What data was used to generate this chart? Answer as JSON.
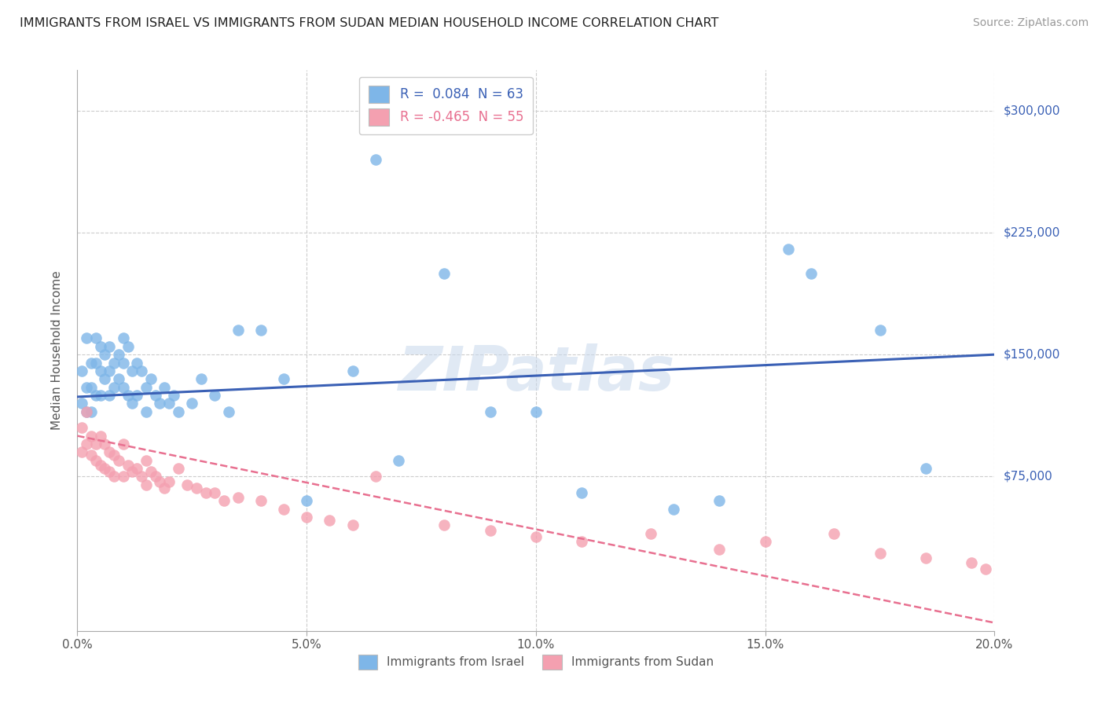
{
  "title": "IMMIGRANTS FROM ISRAEL VS IMMIGRANTS FROM SUDAN MEDIAN HOUSEHOLD INCOME CORRELATION CHART",
  "source": "Source: ZipAtlas.com",
  "ylabel": "Median Household Income",
  "xlim": [
    0.0,
    0.2
  ],
  "ylim": [
    -20000,
    325000
  ],
  "yticks": [
    0,
    75000,
    150000,
    225000,
    300000
  ],
  "xticks": [
    0.0,
    0.05,
    0.1,
    0.15,
    0.2
  ],
  "xtick_labels": [
    "0.0%",
    "5.0%",
    "10.0%",
    "15.0%",
    "20.0%"
  ],
  "israel_R": 0.084,
  "israel_N": 63,
  "sudan_R": -0.465,
  "sudan_N": 55,
  "israel_color": "#7EB6E8",
  "sudan_color": "#F4A0B0",
  "israel_line_color": "#3A60B5",
  "sudan_line_color": "#E87090",
  "background_color": "#FFFFFF",
  "grid_color": "#CCCCCC",
  "watermark": "ZIPatlas",
  "israel_scatter_x": [
    0.001,
    0.001,
    0.002,
    0.002,
    0.002,
    0.003,
    0.003,
    0.003,
    0.004,
    0.004,
    0.004,
    0.005,
    0.005,
    0.005,
    0.006,
    0.006,
    0.007,
    0.007,
    0.007,
    0.008,
    0.008,
    0.009,
    0.009,
    0.01,
    0.01,
    0.01,
    0.011,
    0.011,
    0.012,
    0.012,
    0.013,
    0.013,
    0.014,
    0.015,
    0.015,
    0.016,
    0.017,
    0.018,
    0.019,
    0.02,
    0.021,
    0.022,
    0.025,
    0.027,
    0.03,
    0.033,
    0.035,
    0.04,
    0.045,
    0.05,
    0.06,
    0.065,
    0.07,
    0.08,
    0.09,
    0.1,
    0.11,
    0.13,
    0.14,
    0.155,
    0.16,
    0.175,
    0.185
  ],
  "israel_scatter_y": [
    140000,
    120000,
    160000,
    130000,
    115000,
    145000,
    130000,
    115000,
    160000,
    145000,
    125000,
    155000,
    140000,
    125000,
    150000,
    135000,
    155000,
    140000,
    125000,
    145000,
    130000,
    150000,
    135000,
    160000,
    145000,
    130000,
    155000,
    125000,
    140000,
    120000,
    145000,
    125000,
    140000,
    130000,
    115000,
    135000,
    125000,
    120000,
    130000,
    120000,
    125000,
    115000,
    120000,
    135000,
    125000,
    115000,
    165000,
    165000,
    135000,
    60000,
    140000,
    270000,
    85000,
    200000,
    115000,
    115000,
    65000,
    55000,
    60000,
    215000,
    200000,
    165000,
    80000
  ],
  "sudan_scatter_x": [
    0.001,
    0.001,
    0.002,
    0.002,
    0.003,
    0.003,
    0.004,
    0.004,
    0.005,
    0.005,
    0.006,
    0.006,
    0.007,
    0.007,
    0.008,
    0.008,
    0.009,
    0.01,
    0.01,
    0.011,
    0.012,
    0.013,
    0.014,
    0.015,
    0.015,
    0.016,
    0.017,
    0.018,
    0.019,
    0.02,
    0.022,
    0.024,
    0.026,
    0.028,
    0.03,
    0.032,
    0.035,
    0.04,
    0.045,
    0.05,
    0.055,
    0.06,
    0.065,
    0.08,
    0.09,
    0.1,
    0.11,
    0.125,
    0.14,
    0.15,
    0.165,
    0.175,
    0.185,
    0.195,
    0.198
  ],
  "sudan_scatter_y": [
    105000,
    90000,
    115000,
    95000,
    100000,
    88000,
    95000,
    85000,
    100000,
    82000,
    95000,
    80000,
    90000,
    78000,
    88000,
    75000,
    85000,
    95000,
    75000,
    82000,
    78000,
    80000,
    75000,
    85000,
    70000,
    78000,
    75000,
    72000,
    68000,
    72000,
    80000,
    70000,
    68000,
    65000,
    65000,
    60000,
    62000,
    60000,
    55000,
    50000,
    48000,
    45000,
    75000,
    45000,
    42000,
    38000,
    35000,
    40000,
    30000,
    35000,
    40000,
    28000,
    25000,
    22000,
    18000
  ]
}
